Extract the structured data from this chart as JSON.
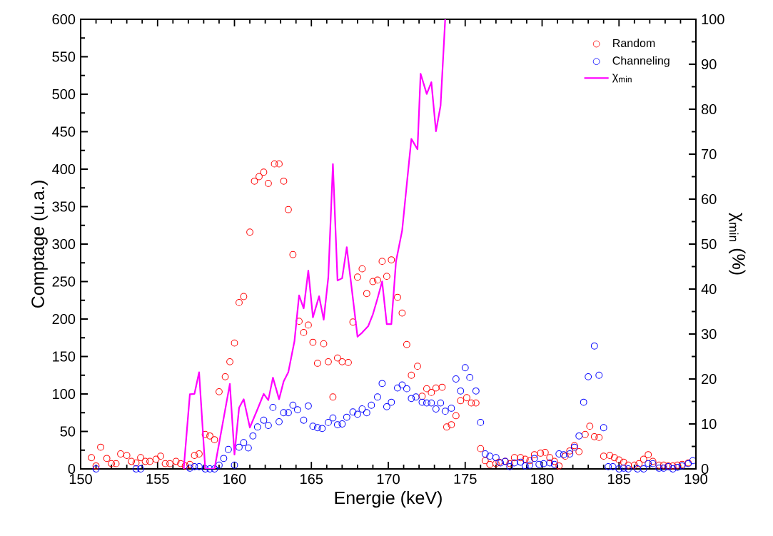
{
  "chart_data": {
    "type": "scatter",
    "xlabel": "Energie (keV)",
    "ylabel": "Comptage (u.a.)",
    "y2label": "χ$_{min}$ (%)",
    "xlim": [
      150,
      190
    ],
    "xticks": [
      150,
      155,
      160,
      165,
      170,
      175,
      180,
      185,
      190
    ],
    "ylim": [
      0,
      600
    ],
    "yticks": [
      0,
      50,
      100,
      150,
      200,
      250,
      300,
      350,
      400,
      450,
      500,
      550,
      600
    ],
    "y2lim": [
      0,
      100
    ],
    "y2ticks": [
      0,
      10,
      20,
      30,
      40,
      50,
      60,
      70,
      80,
      90,
      100
    ],
    "legend": "top right",
    "marker": "circle",
    "grid": false,
    "series": [
      {
        "name": "Random",
        "color": "#ff0000",
        "x": [
          150.7,
          151.0,
          151.3,
          151.7,
          152.0,
          152.3,
          152.6,
          153.0,
          153.3,
          153.6,
          153.9,
          154.2,
          154.5,
          154.9,
          155.2,
          155.5,
          155.8,
          156.2,
          156.5,
          156.8,
          157.1,
          157.4,
          157.7,
          158.1,
          158.4,
          158.7,
          159.0,
          159.4,
          159.7,
          160.0,
          160.3,
          160.6,
          161.0,
          161.3,
          161.6,
          161.9,
          162.2,
          162.6,
          162.9,
          163.2,
          163.5,
          163.8,
          164.2,
          164.5,
          164.8,
          165.1,
          165.4,
          165.8,
          166.1,
          166.4,
          166.7,
          167.0,
          167.4,
          167.7,
          168.0,
          168.3,
          168.6,
          169.0,
          169.3,
          169.6,
          169.9,
          170.2,
          170.6,
          170.9,
          171.2,
          171.5,
          171.9,
          172.2,
          172.5,
          172.8,
          173.1,
          173.5,
          173.8,
          174.1,
          174.4,
          174.7,
          175.1,
          175.4,
          175.7,
          176.0,
          176.3,
          176.6,
          177.0,
          177.2,
          177.6,
          177.9,
          178.2,
          178.6,
          178.9,
          179.2,
          179.5,
          179.9,
          180.2,
          180.5,
          180.8,
          181.1,
          181.5,
          181.8,
          182.1,
          182.4,
          182.8,
          183.1,
          183.4,
          183.7,
          184.0,
          184.4,
          184.7,
          185.0,
          185.3,
          185.6,
          186.0,
          186.3,
          186.6,
          186.9,
          187.2,
          187.6,
          187.9,
          188.2,
          188.5,
          188.8,
          189.1,
          189.5
        ],
        "values": [
          15,
          4,
          29,
          14,
          7,
          7,
          20,
          18,
          10,
          8,
          15,
          10,
          10,
          13,
          17,
          7,
          7,
          10,
          7,
          4,
          6,
          18,
          20,
          46,
          44,
          39,
          103,
          123,
          143,
          168,
          222,
          230,
          316,
          384,
          390,
          396,
          381,
          407,
          407,
          384,
          346,
          286,
          197,
          182,
          192,
          169,
          141,
          167,
          143,
          96,
          148,
          143,
          142,
          196,
          256,
          267,
          234,
          250,
          252,
          277,
          257,
          279,
          229,
          208,
          166,
          125,
          137,
          97,
          107,
          102,
          108,
          109,
          56,
          59,
          71,
          91,
          95,
          88,
          88,
          27,
          11,
          6,
          7,
          9,
          10,
          7,
          15,
          15,
          13,
          11,
          19,
          21,
          22,
          15,
          10,
          4,
          17,
          24,
          31,
          23,
          46,
          57,
          43,
          42,
          17,
          18,
          15,
          12,
          9,
          5,
          5,
          7,
          13,
          19,
          10,
          5,
          5,
          4,
          4,
          5,
          6,
          8
        ]
      },
      {
        "name": "Channeling",
        "color": "#0000ff",
        "x": [
          151.0,
          153.6,
          153.9,
          157.1,
          157.4,
          157.7,
          158.1,
          158.4,
          158.7,
          159.0,
          159.3,
          159.6,
          160.0,
          160.3,
          160.6,
          160.9,
          161.2,
          161.5,
          161.9,
          162.2,
          162.5,
          162.9,
          163.2,
          163.5,
          163.8,
          164.1,
          164.5,
          164.8,
          165.1,
          165.4,
          165.7,
          166.1,
          166.4,
          166.7,
          167.0,
          167.3,
          167.7,
          168.0,
          168.3,
          168.6,
          168.9,
          169.3,
          169.6,
          169.9,
          170.2,
          170.6,
          170.9,
          171.2,
          171.5,
          171.8,
          172.2,
          172.5,
          172.8,
          173.1,
          173.4,
          173.7,
          174.1,
          174.4,
          174.7,
          175.0,
          175.3,
          175.7,
          176.0,
          176.3,
          176.6,
          177.0,
          177.3,
          177.6,
          177.9,
          178.2,
          178.6,
          178.9,
          179.2,
          179.5,
          179.8,
          180.1,
          180.5,
          180.8,
          181.1,
          181.4,
          181.8,
          182.1,
          182.4,
          182.7,
          183.0,
          183.4,
          183.7,
          184.0,
          184.3,
          184.6,
          185.0,
          185.3,
          185.6,
          186.2,
          186.6,
          186.9,
          187.2,
          187.6,
          187.9,
          188.2,
          188.5,
          188.8,
          189.1,
          189.5,
          189.8
        ],
        "values": [
          0,
          0,
          0,
          1,
          3,
          3,
          0,
          0,
          0,
          5,
          14,
          26,
          5,
          29,
          35,
          28,
          44,
          56,
          65,
          58,
          82,
          63,
          75,
          75,
          85,
          79,
          65,
          84,
          57,
          55,
          54,
          62,
          68,
          59,
          60,
          69,
          76,
          73,
          80,
          75,
          85,
          96,
          114,
          83,
          89,
          108,
          112,
          107,
          94,
          96,
          89,
          88,
          88,
          80,
          88,
          77,
          81,
          120,
          104,
          135,
          122,
          104,
          62,
          20,
          17,
          15,
          8,
          10,
          3,
          8,
          9,
          4,
          5,
          14,
          6,
          7,
          8,
          6,
          20,
          19,
          20,
          29,
          44,
          89,
          123,
          164,
          125,
          55,
          3,
          3,
          0,
          1,
          0,
          0,
          0,
          7,
          7,
          1,
          1,
          3,
          0,
          2,
          4,
          7,
          11
        ]
      },
      {
        "name": "χ$_{min}$",
        "type": "line",
        "axis": "y2",
        "marker": "none",
        "color": "#ff00ff",
        "x": [
          156.7,
          157.1,
          157.4,
          157.7,
          158.1,
          158.7,
          159.7,
          160.0,
          160.3,
          160.6,
          161.0,
          161.5,
          161.9,
          162.2,
          162.5,
          162.9,
          163.2,
          163.5,
          163.9,
          164.2,
          164.5,
          164.8,
          165.1,
          165.5,
          165.8,
          166.1,
          166.4,
          166.7,
          167.0,
          167.3,
          168.0,
          168.3,
          168.7,
          169.0,
          169.3,
          169.6,
          169.9,
          170.2,
          170.5,
          170.9,
          171.1,
          171.5,
          171.9,
          172.1,
          172.5,
          172.8,
          173.1,
          173.4,
          173.7
        ],
        "values": [
          0,
          16.6,
          16.7,
          21.5,
          0,
          0,
          18.9,
          3.2,
          13.6,
          15.5,
          9.2,
          13.3,
          16.7,
          15.3,
          20.3,
          15.5,
          19.5,
          21.5,
          28.4,
          38.6,
          35.7,
          44.1,
          33.7,
          38.4,
          33.2,
          42.6,
          67.8,
          41.9,
          42.4,
          49.3,
          29.4,
          30.3,
          31.8,
          34.4,
          37.9,
          41.7,
          32.2,
          32.2,
          46.1,
          53,
          59.8,
          73.4,
          71.1,
          87.9,
          83.4,
          86,
          75.1,
          80.8,
          100
        ]
      }
    ]
  }
}
